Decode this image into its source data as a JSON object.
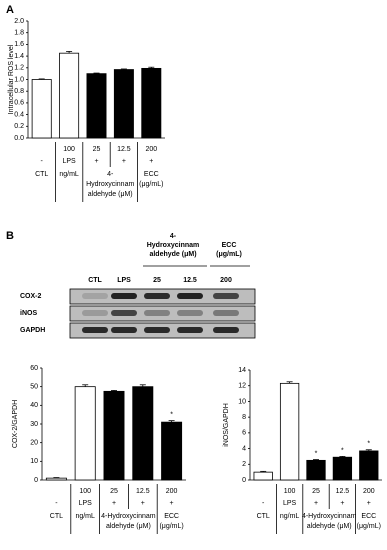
{
  "panel_labels": [
    "A",
    "B"
  ],
  "blot": {
    "group_headers": [
      [
        "4-",
        "Hydroxycinnam",
        "aldehyde (μM)"
      ],
      [
        "ECC",
        "(μg/mL)"
      ]
    ],
    "lanes": [
      "CTL",
      "LPS",
      "25",
      "12.5",
      "200"
    ],
    "rows": [
      "COX-2",
      "iNOS",
      "GAPDH"
    ]
  },
  "chart_data": [
    {
      "type": "bar",
      "y_label": "Intracellular ROS level",
      "values": [
        1.0,
        1.45,
        1.1,
        1.17,
        1.19
      ],
      "errors": [
        0.01,
        0.03,
        0.01,
        0.01,
        0.02
      ],
      "colors": [
        "#ffffff",
        "#ffffff",
        "#000000",
        "#000000",
        "#000000"
      ],
      "ylim": [
        0,
        2.0
      ],
      "yticks": [
        {
          "value": 0,
          "label": "0.0"
        },
        {
          "value": 0.2,
          "label": "0.2"
        },
        {
          "value": 0.4,
          "label": "0.4"
        },
        {
          "value": 0.6,
          "label": "0.6"
        },
        {
          "value": 0.8,
          "label": "0.8"
        },
        {
          "value": 1.0,
          "label": "1.0"
        },
        {
          "value": 1.2,
          "label": "1.2"
        },
        {
          "value": 1.4,
          "label": "1.4"
        },
        {
          "value": 1.6,
          "label": "1.6"
        },
        {
          "value": 1.8,
          "label": "1.8"
        },
        {
          "value": 2.0,
          "label": "2.0"
        }
      ],
      "treatments": {
        "doses": [
          null,
          "100",
          "25",
          "12.5",
          "200"
        ],
        "agents": [
          "-",
          "LPS",
          "+",
          "+",
          "+"
        ],
        "groups": [
          [
            "CTL"
          ],
          [
            "ng/mL"
          ],
          [
            "4-",
            "Hydroxycinnam",
            "aldehyde (μM)"
          ],
          [
            "ECC",
            "(μg/mL)"
          ]
        ]
      }
    },
    {
      "type": "bar",
      "y_label": "COX-2/GAPDH",
      "values": [
        1,
        50,
        47.5,
        50,
        31
      ],
      "errors": [
        0.3,
        1,
        0.5,
        1,
        0.8
      ],
      "significance": [
        null,
        null,
        null,
        null,
        "*"
      ],
      "colors": [
        "#ffffff",
        "#ffffff",
        "#000000",
        "#000000",
        "#000000"
      ],
      "ylim": [
        0,
        60
      ],
      "yticks": [
        0,
        10,
        20,
        30,
        40,
        50,
        60
      ],
      "treatments": {
        "doses": [
          null,
          "100",
          "25",
          "12.5",
          "200"
        ],
        "agents": [
          "-",
          "LPS",
          "+",
          "+",
          "+"
        ],
        "groups": [
          [
            "CTL"
          ],
          [
            "ng/mL"
          ],
          [
            "4-Hydroxycinnam",
            "aldehyde (μM)"
          ],
          [
            "ECC",
            "(μg/mL)"
          ]
        ]
      }
    },
    {
      "type": "bar",
      "y_label": "iNOS/GAPDH",
      "values": [
        1,
        12.3,
        2.5,
        2.9,
        3.7
      ],
      "errors": [
        0.1,
        0.2,
        0.1,
        0.1,
        0.15
      ],
      "significance": [
        null,
        null,
        "*",
        "*",
        "*"
      ],
      "colors": [
        "#ffffff",
        "#ffffff",
        "#000000",
        "#000000",
        "#000000"
      ],
      "ylim": [
        0,
        14
      ],
      "yticks": [
        0,
        2,
        4,
        6,
        8,
        10,
        12,
        14
      ],
      "treatments": {
        "doses": [
          null,
          "100",
          "25",
          "12.5",
          "200"
        ],
        "agents": [
          "-",
          "LPS",
          "+",
          "+",
          "+"
        ],
        "groups": [
          [
            "CTL"
          ],
          [
            "ng/mL"
          ],
          [
            "4-Hydroxycinnam",
            "aldehyde (μM)"
          ],
          [
            "ECC",
            "(μg/mL)"
          ]
        ]
      }
    }
  ]
}
